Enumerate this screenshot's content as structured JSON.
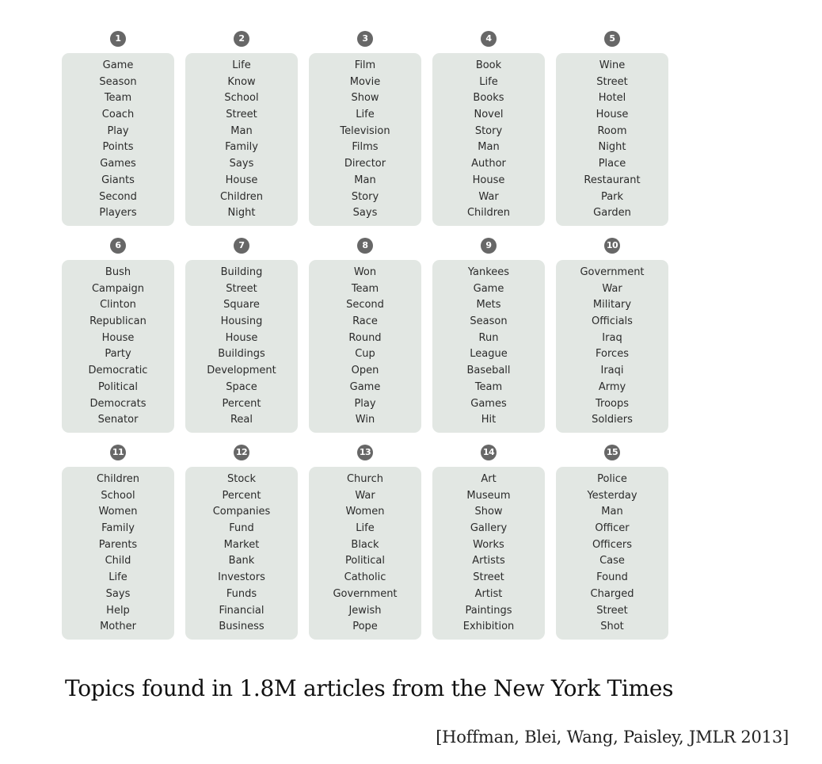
{
  "topics": [
    {
      "number": "1",
      "words": [
        "Game",
        "Season",
        "Team",
        "Coach",
        "Play",
        "Points",
        "Games",
        "Giants",
        "Second",
        "Players"
      ]
    },
    {
      "number": "2",
      "words": [
        "Life",
        "Know",
        "School",
        "Street",
        "Man",
        "Family",
        "Says",
        "House",
        "Children",
        "Night"
      ]
    },
    {
      "number": "3",
      "words": [
        "Film",
        "Movie",
        "Show",
        "Life",
        "Television",
        "Films",
        "Director",
        "Man",
        "Story",
        "Says"
      ]
    },
    {
      "number": "4",
      "words": [
        "Book",
        "Life",
        "Books",
        "Novel",
        "Story",
        "Man",
        "Author",
        "House",
        "War",
        "Children"
      ]
    },
    {
      "number": "5",
      "words": [
        "Wine",
        "Street",
        "Hotel",
        "House",
        "Room",
        "Night",
        "Place",
        "Restaurant",
        "Park",
        "Garden"
      ]
    },
    {
      "number": "6",
      "words": [
        "Bush",
        "Campaign",
        "Clinton",
        "Republican",
        "House",
        "Party",
        "Democratic",
        "Political",
        "Democrats",
        "Senator"
      ]
    },
    {
      "number": "7",
      "words": [
        "Building",
        "Street",
        "Square",
        "Housing",
        "House",
        "Buildings",
        "Development",
        "Space",
        "Percent",
        "Real"
      ]
    },
    {
      "number": "8",
      "words": [
        "Won",
        "Team",
        "Second",
        "Race",
        "Round",
        "Cup",
        "Open",
        "Game",
        "Play",
        "Win"
      ]
    },
    {
      "number": "9",
      "words": [
        "Yankees",
        "Game",
        "Mets",
        "Season",
        "Run",
        "League",
        "Baseball",
        "Team",
        "Games",
        "Hit"
      ]
    },
    {
      "number": "10",
      "words": [
        "Government",
        "War",
        "Military",
        "Officials",
        "Iraq",
        "Forces",
        "Iraqi",
        "Army",
        "Troops",
        "Soldiers"
      ]
    },
    {
      "number": "11",
      "words": [
        "Children",
        "School",
        "Women",
        "Family",
        "Parents",
        "Child",
        "Life",
        "Says",
        "Help",
        "Mother"
      ]
    },
    {
      "number": "12",
      "words": [
        "Stock",
        "Percent",
        "Companies",
        "Fund",
        "Market",
        "Bank",
        "Investors",
        "Funds",
        "Financial",
        "Business"
      ]
    },
    {
      "number": "13",
      "words": [
        "Church",
        "War",
        "Women",
        "Life",
        "Black",
        "Political",
        "Catholic",
        "Government",
        "Jewish",
        "Pope"
      ]
    },
    {
      "number": "14",
      "words": [
        "Art",
        "Museum",
        "Show",
        "Gallery",
        "Works",
        "Artists",
        "Street",
        "Artist",
        "Paintings",
        "Exhibition"
      ]
    },
    {
      "number": "15",
      "words": [
        "Police",
        "Yesterday",
        "Man",
        "Officer",
        "Officers",
        "Case",
        "Found",
        "Charged",
        "Street",
        "Shot"
      ]
    }
  ],
  "caption": "Topics found in 1.8M articles from the New York Times",
  "citation": "[Hoffman, Blei, Wang, Paisley, JMLR 2013]",
  "colors": {
    "box_background": "#e2e7e3",
    "number_badge": "#676767"
  }
}
